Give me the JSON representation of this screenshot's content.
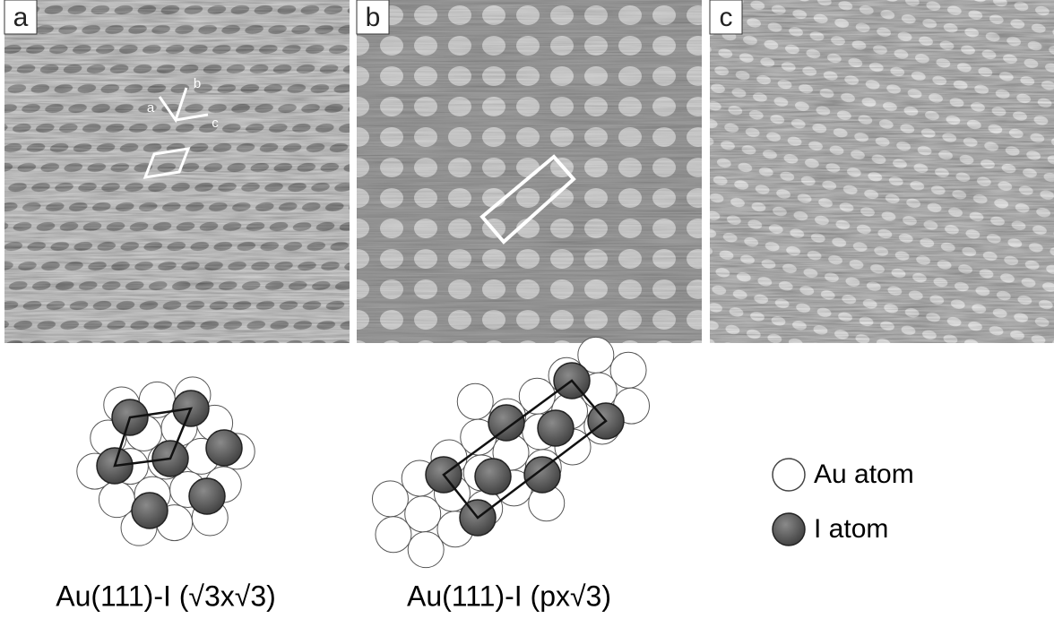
{
  "panels": [
    {
      "label": "a",
      "axes": [
        "a",
        "b",
        "c"
      ]
    },
    {
      "label": "b"
    },
    {
      "label": "c"
    }
  ],
  "models": [
    {
      "caption": "Au(111)-I (√3x√3)"
    },
    {
      "caption": "Au(111)-I (px√3)"
    }
  ],
  "legend": [
    "Au atom",
    "I atom"
  ]
}
